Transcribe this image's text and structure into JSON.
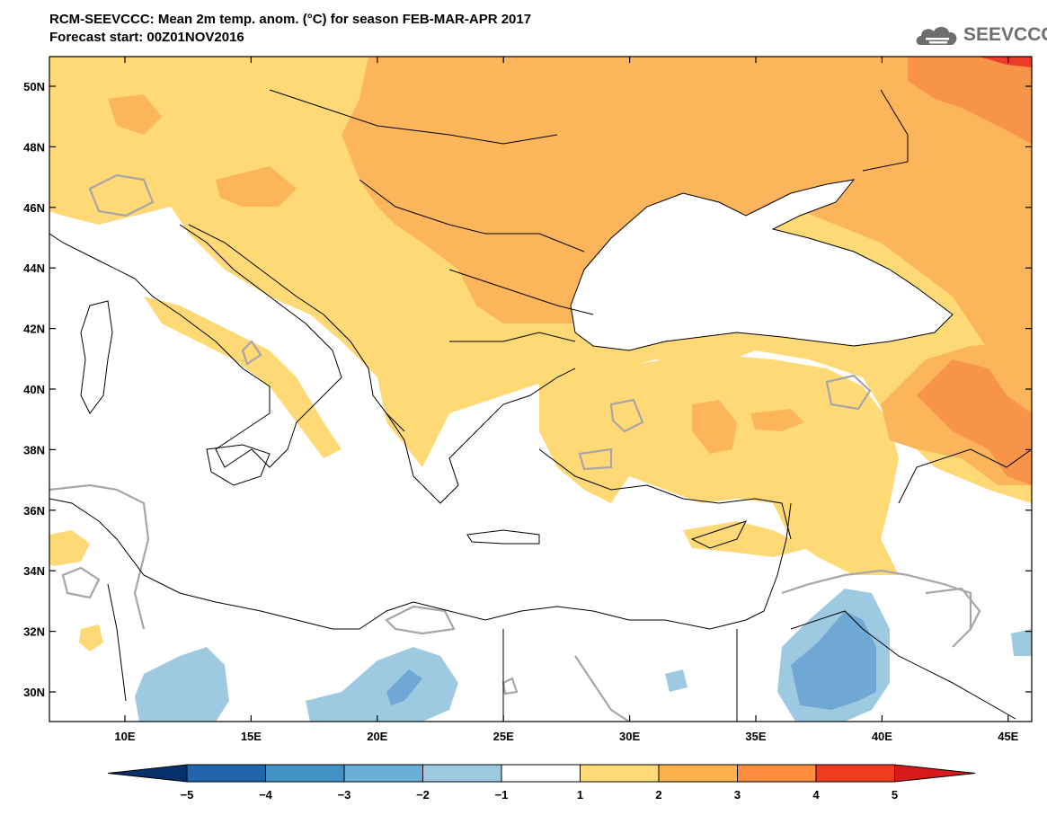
{
  "header": {
    "title": "RCM-SEEVCCC: Mean 2m temp. anom. (°C) for season FEB-MAR-APR 2017",
    "subtitle": "Forecast start: 00Z01NOV2016",
    "logo_text": "SEEVCCC",
    "logo_icon": "cloud-icon"
  },
  "map": {
    "lat_labels": [
      "50N",
      "48N",
      "46N",
      "44N",
      "42N",
      "40N",
      "38N",
      "36N",
      "34N",
      "32N",
      "30N"
    ],
    "lon_labels": [
      "10E",
      "15E",
      "20E",
      "25E",
      "30E",
      "35E",
      "40E",
      "45E"
    ],
    "colors": {
      "blue_dark": "#7fb0d8",
      "blue_mid": "#5b93c7",
      "light_blue": "#9ecae1",
      "yellow": "#fed976",
      "orange_light": "#fdb55b",
      "orange": "#f7944a",
      "red": "#ef3b2c",
      "contour": "#a6a6a6",
      "coast": "#000000"
    }
  },
  "colorbar": {
    "labels": [
      "−5",
      "−4",
      "−3",
      "−2",
      "−1",
      "1",
      "2",
      "3",
      "4",
      "5"
    ],
    "colors": [
      "#08306b",
      "#2166ac",
      "#4292c6",
      "#6baed6",
      "#9ecae1",
      "#ffffff",
      "#fed976",
      "#feb24c",
      "#fd8d3c",
      "#f03b20",
      "#d7191c"
    ]
  }
}
